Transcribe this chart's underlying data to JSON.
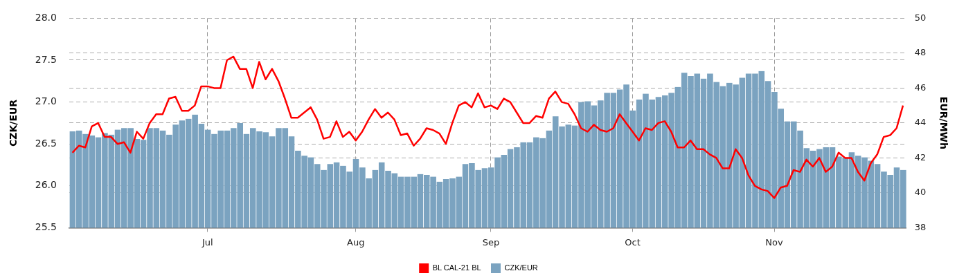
{
  "chart_data": {
    "type": "bar",
    "ylabel": "CZK/EUR",
    "y2label": "EUR/MWh",
    "categories": [
      null,
      null,
      null,
      null,
      null,
      null,
      null,
      null,
      null,
      null,
      null,
      null,
      null,
      null,
      null,
      null,
      null,
      null,
      null,
      null,
      null,
      "Jul",
      null,
      null,
      null,
      null,
      null,
      null,
      null,
      null,
      null,
      null,
      null,
      null,
      null,
      null,
      null,
      null,
      null,
      null,
      null,
      null,
      null,
      null,
      "Aug",
      null,
      null,
      null,
      null,
      null,
      null,
      null,
      null,
      null,
      null,
      null,
      null,
      null,
      null,
      null,
      null,
      null,
      null,
      null,
      null,
      "Sep",
      null,
      null,
      null,
      null,
      null,
      null,
      null,
      null,
      null,
      null,
      null,
      null,
      null,
      null,
      null,
      null,
      null,
      null,
      null,
      null,
      null,
      "Oct",
      null,
      null,
      null,
      null,
      null,
      null,
      null,
      null,
      null,
      null,
      null,
      null,
      null,
      null,
      null,
      null,
      null,
      null,
      null,
      null,
      null,
      "Nov",
      null,
      null,
      null,
      null,
      null,
      null,
      null,
      null,
      null,
      null,
      null,
      null,
      null,
      null,
      null,
      null,
      null,
      null,
      null,
      null
    ],
    "series": [
      {
        "name": "BL CAL-21 BL",
        "type": "line",
        "axis": "y2",
        "color": "#ff0000",
        "values": [
          42.3,
          42.7,
          42.6,
          43.8,
          44.0,
          43.2,
          43.2,
          42.8,
          42.9,
          42.3,
          43.5,
          43.1,
          44.0,
          44.5,
          44.5,
          45.4,
          45.5,
          44.7,
          44.7,
          45.0,
          46.1,
          46.1,
          46.0,
          46.0,
          47.6,
          47.8,
          47.1,
          47.1,
          46.0,
          47.5,
          46.5,
          47.1,
          46.4,
          45.4,
          44.3,
          44.3,
          44.6,
          44.9,
          44.2,
          43.1,
          43.2,
          44.1,
          43.2,
          43.5,
          43.0,
          43.5,
          44.2,
          44.8,
          44.3,
          44.6,
          44.2,
          43.3,
          43.4,
          42.7,
          43.1,
          43.7,
          43.6,
          43.4,
          42.8,
          44.0,
          45.0,
          45.2,
          44.9,
          45.7,
          44.9,
          45.0,
          44.8,
          45.4,
          45.2,
          44.6,
          44.0,
          44.0,
          44.4,
          44.3,
          45.4,
          45.8,
          45.2,
          45.1,
          44.5,
          43.7,
          43.5,
          43.9,
          43.6,
          43.5,
          43.7,
          44.5,
          44.0,
          43.5,
          43.0,
          43.7,
          43.6,
          44.0,
          44.1,
          43.5,
          42.6,
          42.6,
          43.0,
          42.5,
          42.5,
          42.2,
          42.0,
          41.4,
          41.4,
          42.5,
          42.0,
          41.0,
          40.4,
          40.2,
          40.1,
          39.7,
          40.3,
          40.4,
          41.3,
          41.2,
          41.9,
          41.5,
          42.0,
          41.2,
          41.5,
          42.3,
          42.0,
          42.0,
          41.2,
          40.7,
          41.7,
          42.2,
          43.2,
          43.3,
          43.7,
          45.0
        ]
      },
      {
        "name": "CZK/EUR",
        "color": "#7ba3c0",
        "values": [
          26.65,
          26.66,
          26.62,
          26.6,
          26.58,
          26.63,
          26.61,
          26.67,
          26.69,
          26.69,
          26.56,
          26.55,
          26.69,
          26.69,
          26.66,
          26.61,
          26.73,
          26.78,
          26.8,
          26.85,
          26.74,
          26.67,
          26.62,
          26.66,
          26.66,
          26.69,
          26.75,
          26.62,
          26.69,
          26.65,
          26.64,
          26.59,
          26.69,
          26.69,
          26.59,
          26.42,
          26.36,
          26.34,
          26.26,
          26.19,
          26.26,
          26.28,
          26.24,
          26.17,
          26.32,
          26.22,
          26.09,
          26.19,
          26.28,
          26.18,
          26.15,
          26.11,
          26.11,
          26.11,
          26.14,
          26.13,
          26.11,
          26.05,
          26.08,
          26.09,
          26.11,
          26.26,
          26.27,
          26.19,
          26.21,
          26.22,
          26.34,
          26.37,
          26.44,
          26.46,
          26.52,
          26.52,
          26.58,
          26.57,
          26.66,
          26.83,
          26.71,
          26.73,
          26.72,
          27.0,
          27.01,
          26.96,
          27.02,
          27.11,
          27.11,
          27.15,
          27.21,
          26.9,
          27.03,
          27.1,
          27.03,
          27.06,
          27.08,
          27.11,
          27.18,
          27.35,
          27.31,
          27.34,
          27.28,
          27.34,
          27.24,
          27.19,
          27.23,
          27.21,
          27.29,
          27.34,
          27.34,
          27.37,
          27.25,
          27.12,
          26.92,
          26.77,
          26.77,
          26.66,
          26.45,
          26.42,
          26.44,
          26.46,
          26.46,
          26.35,
          26.34,
          26.4,
          26.36,
          26.34,
          26.3,
          26.26,
          26.17,
          26.13,
          26.22,
          26.19
        ]
      }
    ],
    "ylim": [
      25.5,
      28.0
    ],
    "yticks": [
      {
        "value": 25.5,
        "label": "25.5"
      },
      {
        "value": 26,
        "label": "26.0"
      },
      {
        "value": 26.5,
        "label": "26.5"
      },
      {
        "value": 27,
        "label": "27.0"
      },
      {
        "value": 27.5,
        "label": "27.5"
      },
      {
        "value": 28,
        "label": "28.0"
      }
    ],
    "y2lim": [
      38,
      50
    ],
    "y2ticks": [
      38,
      40,
      42,
      44,
      46,
      48,
      50
    ],
    "grid": true,
    "legend": "bottom",
    "marker": "none",
    "line_style": "solid"
  }
}
